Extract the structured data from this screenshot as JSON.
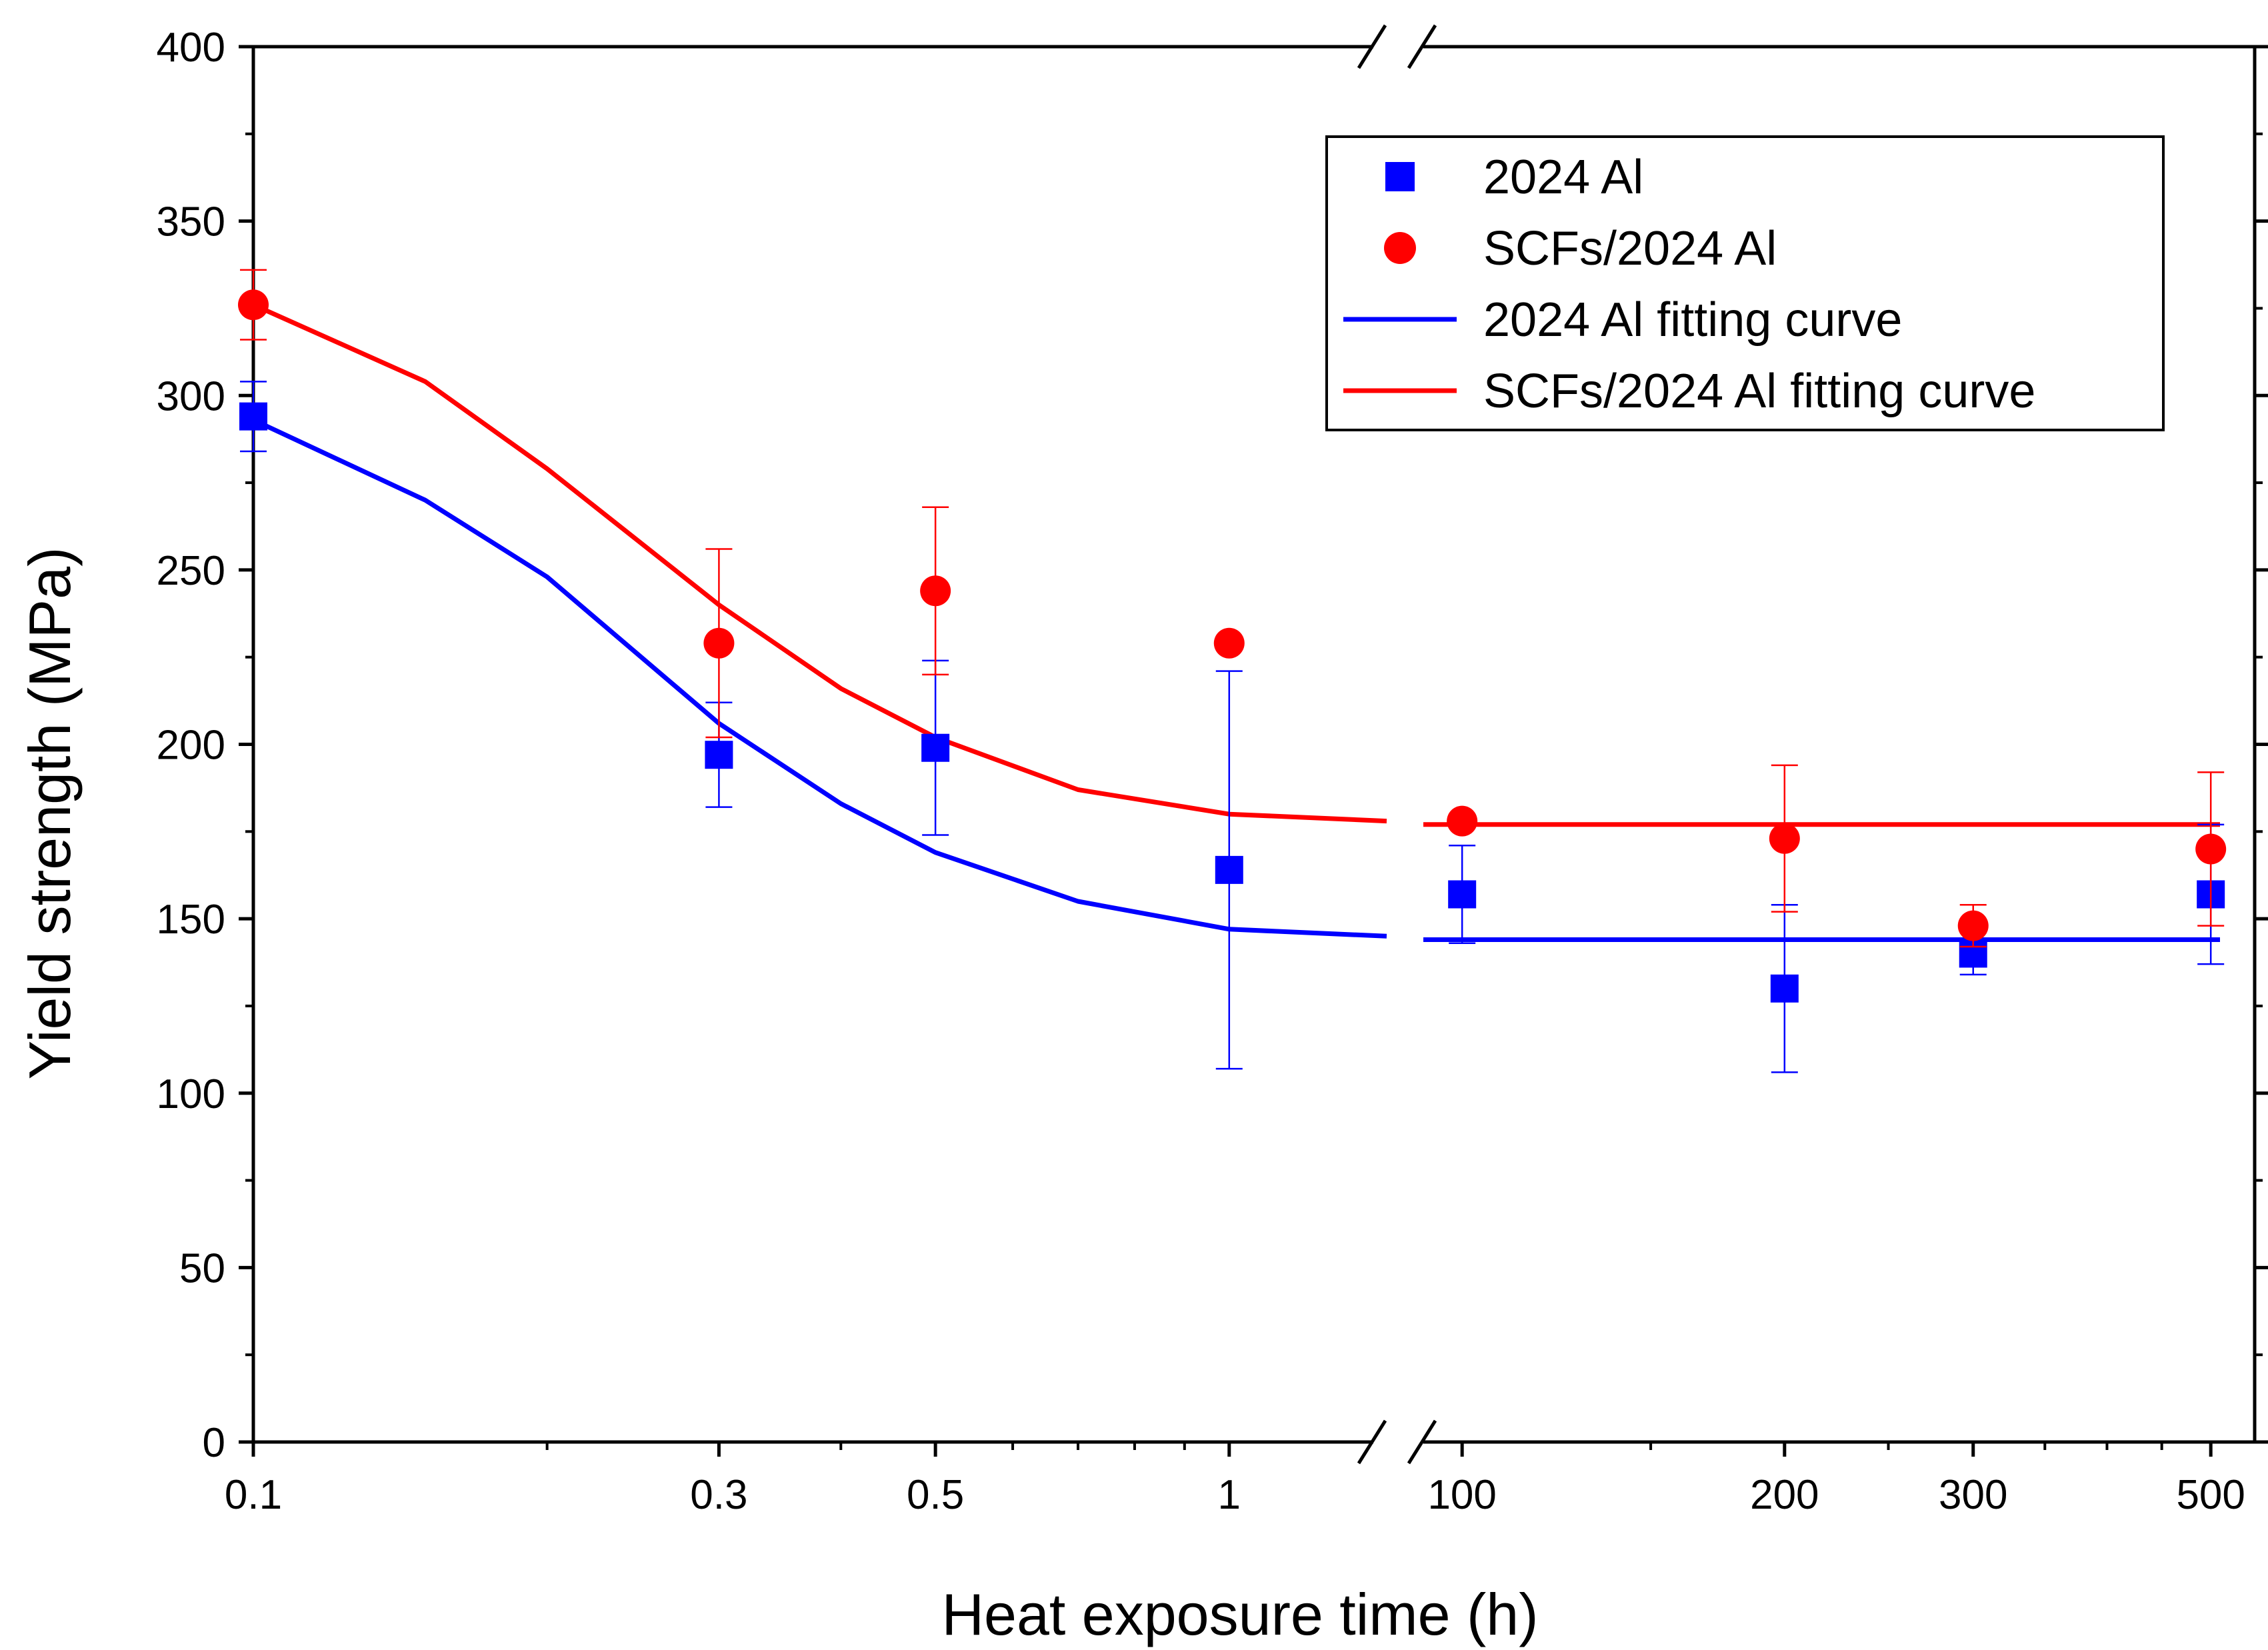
{
  "chart_data": {
    "type": "scatter",
    "title": "",
    "xlabel": "Heat exposure time (h)",
    "ylabel": "Yield strength (MPa)",
    "x_scale": "log, broken axis",
    "x_segments": [
      {
        "range": [
          0.1,
          1.45
        ],
        "ticks": [
          "0.1",
          "0.3",
          "0.5",
          "1"
        ]
      },
      {
        "range": [
          92,
          510
        ],
        "ticks": [
          "100",
          "200",
          "300",
          "500"
        ]
      }
    ],
    "ylim": [
      0,
      400
    ],
    "yticks": [
      "0",
      "50",
      "100",
      "150",
      "200",
      "250",
      "300",
      "350",
      "400"
    ],
    "legend_position": "top-right",
    "legend": [
      "2024 Al",
      "SCFs/2024 Al",
      "2024 Al fitting curve",
      "SCFs/2024 Al fitting curve"
    ],
    "series": [
      {
        "name": "2024 Al",
        "kind": "points",
        "marker": "square",
        "color": "#0000ff",
        "points": [
          {
            "x": 0.1,
            "y": 294,
            "err": 10
          },
          {
            "x": 0.3,
            "y": 197,
            "err": 15
          },
          {
            "x": 0.5,
            "y": 199,
            "err": 25
          },
          {
            "x": 1,
            "y": 164,
            "err": 57
          },
          {
            "x": 100,
            "y": 157,
            "err": 14
          },
          {
            "x": 200,
            "y": 130,
            "err": 24
          },
          {
            "x": 300,
            "y": 140,
            "err": 6
          },
          {
            "x": 500,
            "y": 157,
            "err": 20
          }
        ]
      },
      {
        "name": "SCFs/2024 Al",
        "kind": "points",
        "marker": "circle",
        "color": "#ff0000",
        "points": [
          {
            "x": 0.1,
            "y": 326,
            "err": 10
          },
          {
            "x": 0.3,
            "y": 229,
            "err": 27
          },
          {
            "x": 0.5,
            "y": 244,
            "err": 24
          },
          {
            "x": 1,
            "y": 229,
            "err": 0
          },
          {
            "x": 100,
            "y": 178,
            "err": 0
          },
          {
            "x": 200,
            "y": 173,
            "err": 21
          },
          {
            "x": 300,
            "y": 148,
            "err": 6
          },
          {
            "x": 500,
            "y": 170,
            "err": 22
          }
        ]
      },
      {
        "name": "2024 Al fitting curve",
        "kind": "line",
        "color": "#0000ff",
        "segments": [
          [
            [
              0.1,
              293
            ],
            [
              0.15,
              270
            ],
            [
              0.2,
              248
            ],
            [
              0.3,
              206
            ],
            [
              0.4,
              183
            ],
            [
              0.5,
              169
            ],
            [
              0.7,
              155
            ],
            [
              1,
              147
            ],
            [
              1.45,
              145
            ]
          ],
          [
            [
              92,
              144
            ],
            [
              510,
              144
            ]
          ]
        ]
      },
      {
        "name": "SCFs/2024 Al fitting curve",
        "kind": "line",
        "color": "#ff0000",
        "segments": [
          [
            [
              0.1,
              326
            ],
            [
              0.15,
              304
            ],
            [
              0.2,
              279
            ],
            [
              0.3,
              240
            ],
            [
              0.4,
              216
            ],
            [
              0.5,
              202
            ],
            [
              0.7,
              187
            ],
            [
              1,
              180
            ],
            [
              1.45,
              178
            ]
          ],
          [
            [
              92,
              177
            ],
            [
              510,
              177
            ]
          ]
        ]
      }
    ]
  }
}
